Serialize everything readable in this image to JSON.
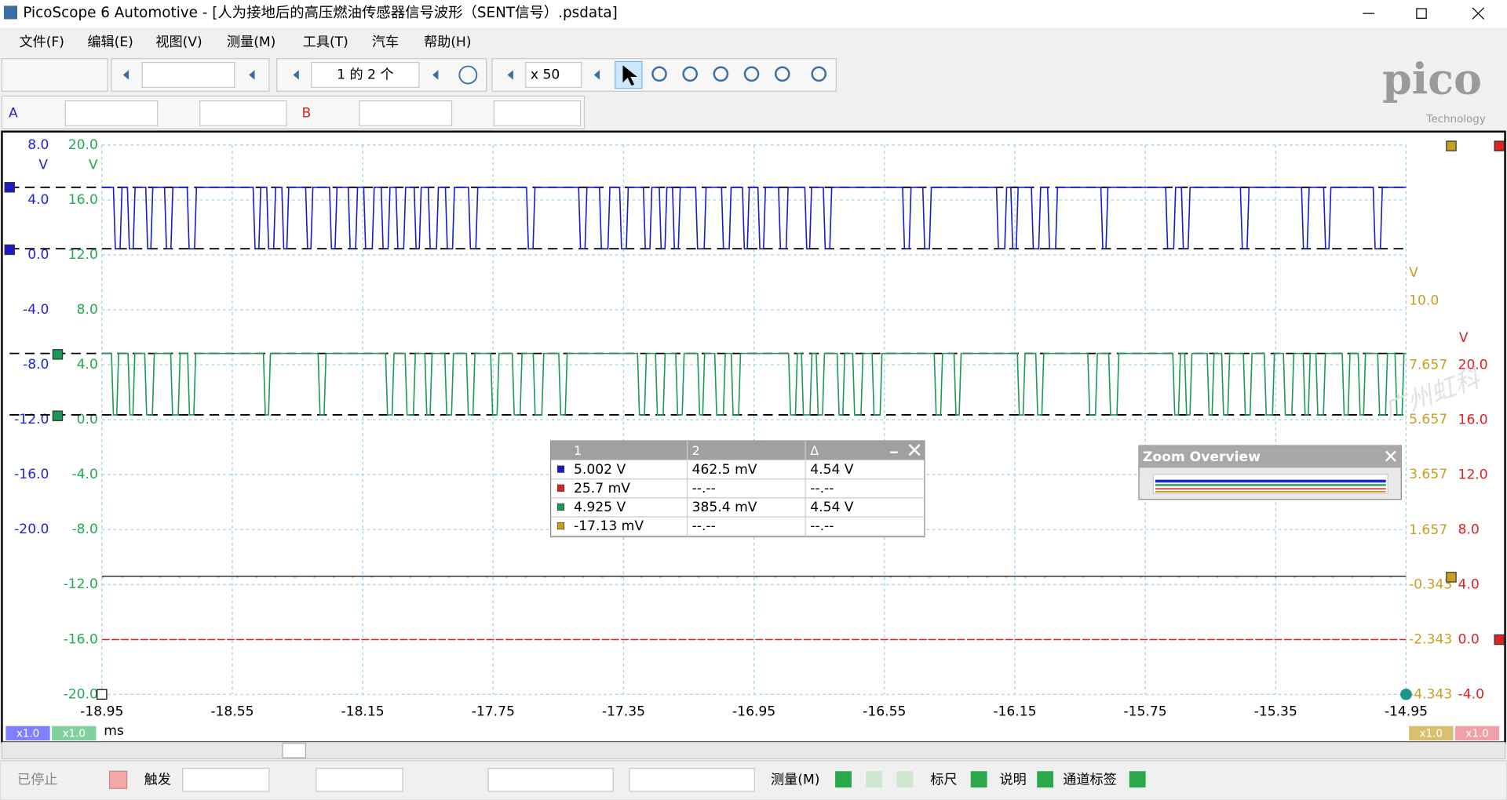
{
  "window": {
    "title": "PicoScope 6 Automotive - [人为接地后的高压燃油传感器信号波形（SENT信号）.psdata]"
  },
  "menu": [
    "文件(F)",
    "编辑(E)",
    "视图(V)",
    "测量(M)",
    "工具(T)",
    "汽车",
    "帮助(H)"
  ],
  "toolbar": {
    "buffer": "1 的 2 个",
    "zoom": "x 50",
    "channel_a": "A",
    "channel_b": "B"
  },
  "logo": {
    "name": "pico",
    "sub": "Technology"
  },
  "axes": {
    "a_unit": "V",
    "a_ticks": [
      "8.0",
      "4.0",
      "0.0",
      "-4.0",
      "-8.0",
      "-12.0",
      "-16.0",
      "-20.0"
    ],
    "c_unit": "V",
    "c_ticks": [
      "20.0",
      "16.0",
      "12.0",
      "8.0",
      "4.0",
      "0.0",
      "-4.0",
      "-8.0",
      "-12.0",
      "-16.0",
      "-20.0"
    ],
    "d_unit": "V",
    "d_ticks": [
      "10.0",
      "7.657",
      "5.657",
      "3.657",
      "1.657",
      "-0.343",
      "-2.343",
      "-4.343"
    ],
    "b_unit": "V",
    "b_ticks": [
      "20.0",
      "16.0",
      "12.0",
      "8.0",
      "4.0",
      "0.0",
      "-4.0"
    ],
    "x_ticks": [
      "-18.95",
      "-18.55",
      "-18.15",
      "-17.75",
      "-17.35",
      "-16.95",
      "-16.55",
      "-16.15",
      "-15.75",
      "-15.35",
      "-14.95"
    ],
    "x_unit": "ms",
    "scale_labels": [
      "x1.0",
      "x1.0",
      "x1.0",
      "x1.0"
    ]
  },
  "rulers": {
    "headers": [
      "1",
      "2",
      "Δ"
    ],
    "rows": [
      [
        "5.002 V",
        "462.5 mV",
        "4.54 V"
      ],
      [
        "25.7 mV",
        "--.--",
        "--.--"
      ],
      [
        "4.925 V",
        "385.4 mV",
        "4.54 V"
      ],
      [
        "-17.13 mV",
        "--.--",
        "--.--"
      ]
    ]
  },
  "zoom_overview": {
    "title": "Zoom Overview"
  },
  "watermark": "广州虹科",
  "status": {
    "stop": "已停止",
    "trigger": "触发",
    "measure": "测量(M)",
    "ruler": "标尺",
    "note": "说明",
    "channel_labels": "通道标签"
  }
}
